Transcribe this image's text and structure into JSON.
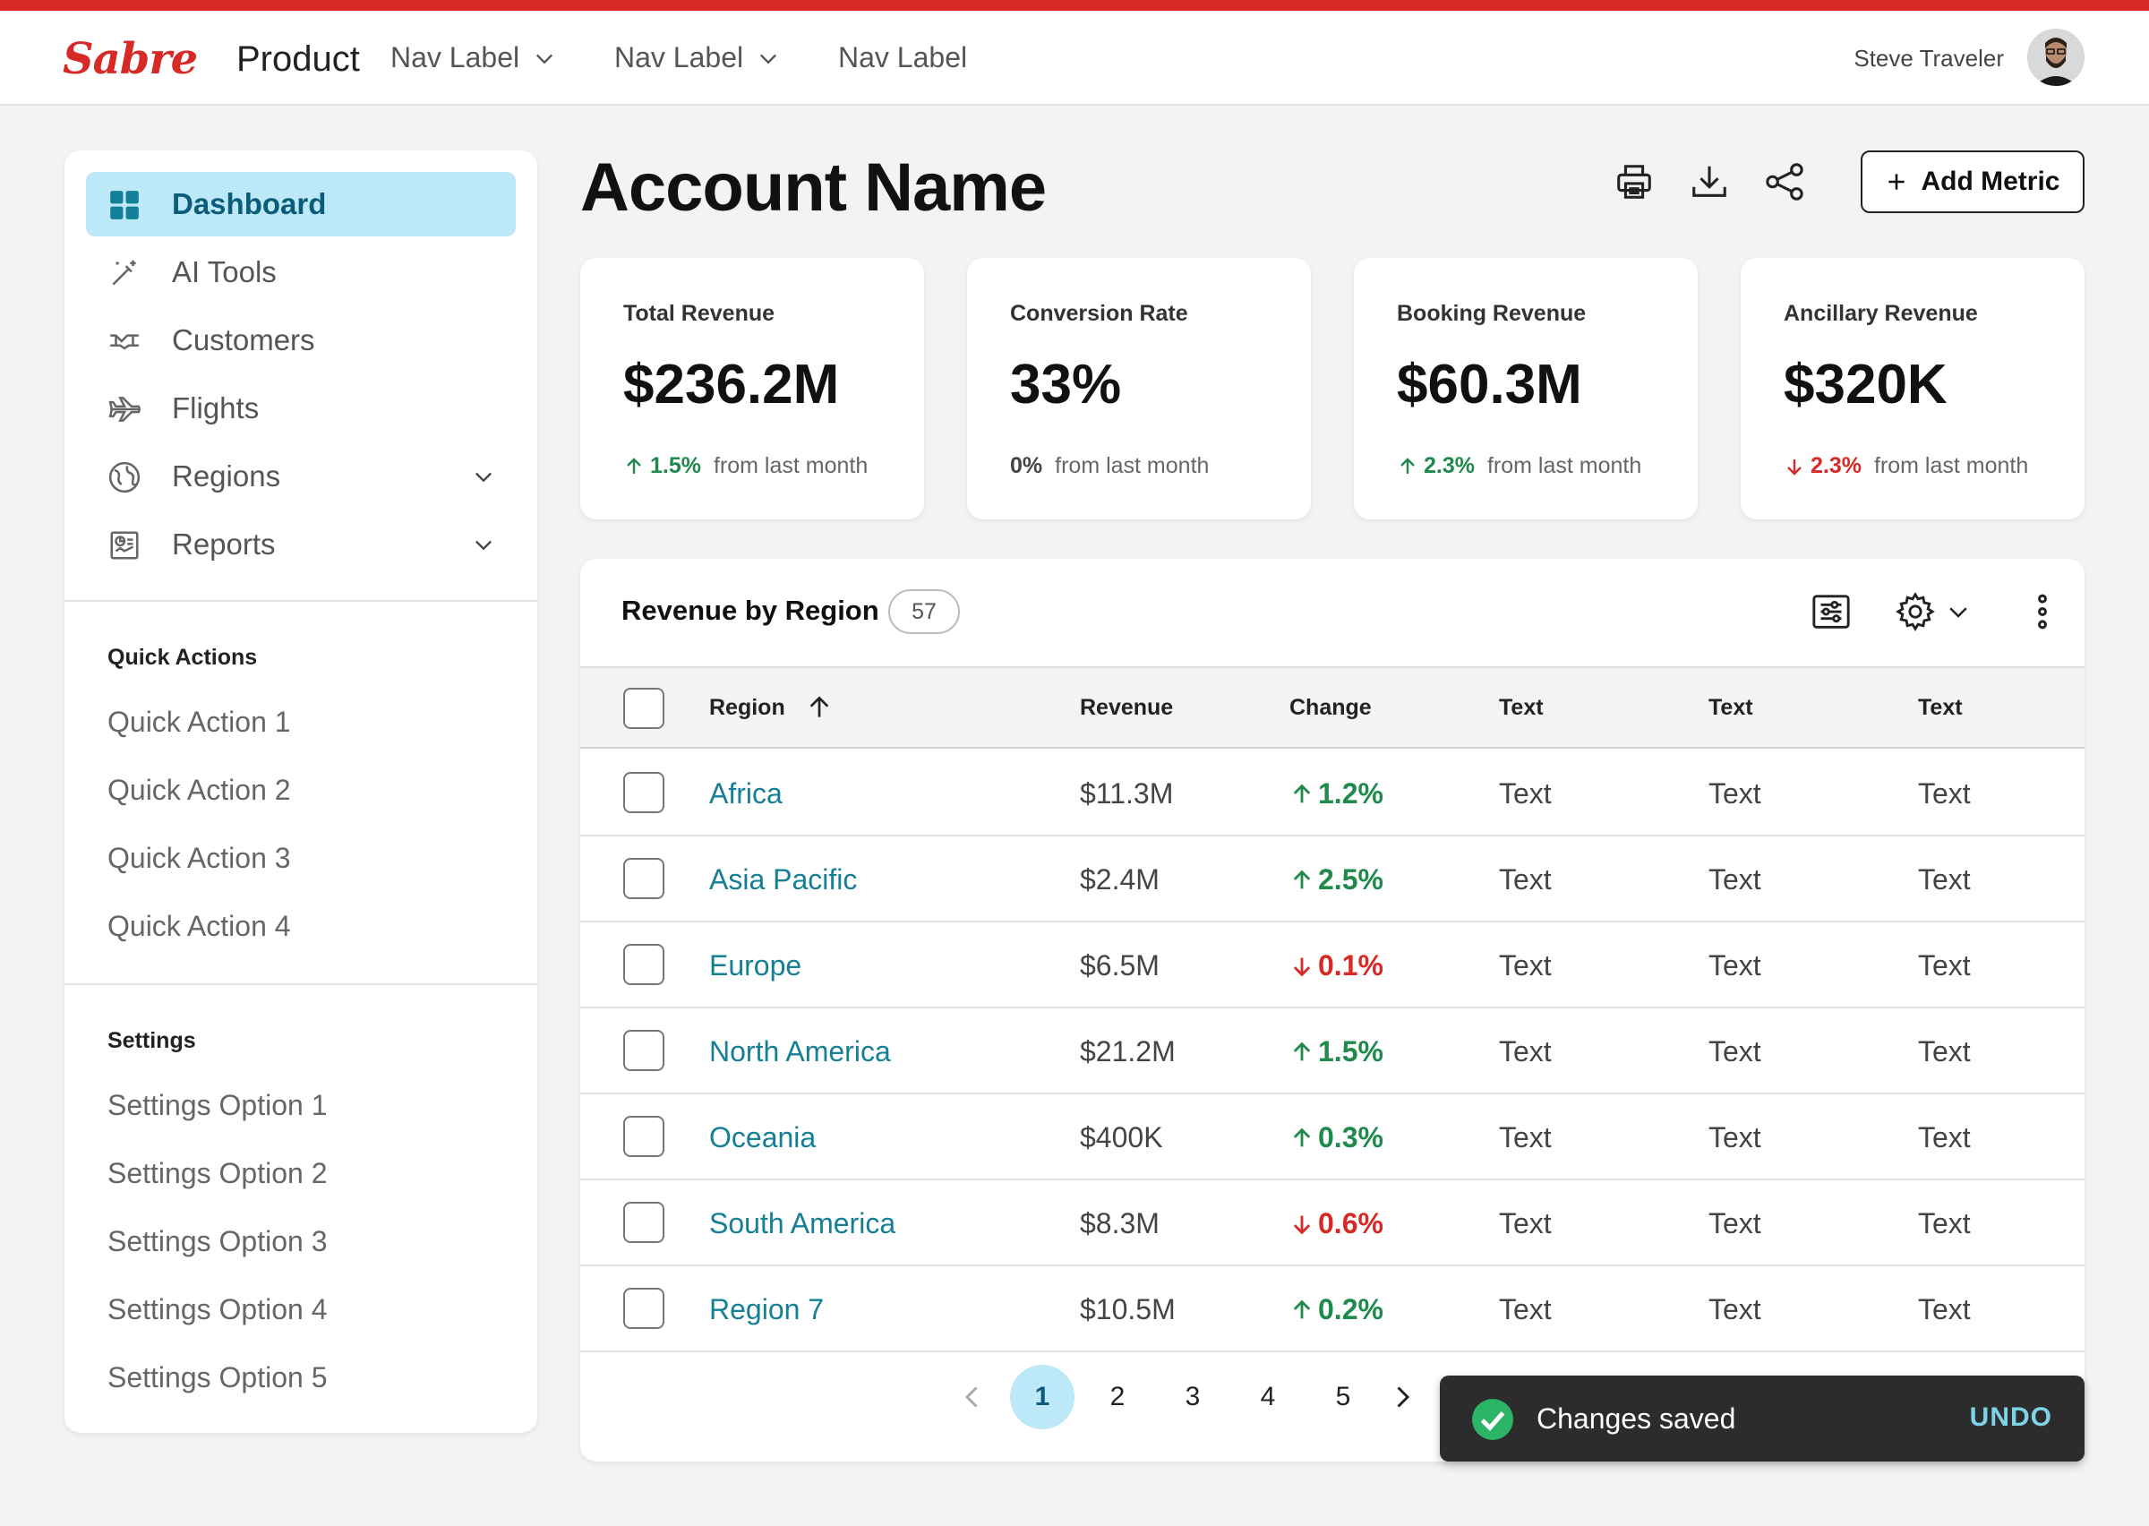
{
  "brand": {
    "logo": "Sabre",
    "product": "Product",
    "accent": "#d72a27"
  },
  "nav": [
    {
      "label": "Nav Label",
      "dropdown": true
    },
    {
      "label": "Nav Label",
      "dropdown": true
    },
    {
      "label": "Nav Label",
      "dropdown": false
    }
  ],
  "user": {
    "name": "Steve Traveler"
  },
  "sidebar": {
    "items": [
      {
        "label": "Dashboard",
        "icon": "dashboard-grid-icon",
        "active": true
      },
      {
        "label": "AI Tools",
        "icon": "magic-wand-icon"
      },
      {
        "label": "Customers",
        "icon": "handshake-icon"
      },
      {
        "label": "Flights",
        "icon": "airplane-icon"
      },
      {
        "label": "Regions",
        "icon": "globe-icon",
        "expandable": true
      },
      {
        "label": "Reports",
        "icon": "report-icon",
        "expandable": true
      }
    ],
    "quick_actions_heading": "Quick Actions",
    "quick_actions": [
      "Quick Action 1",
      "Quick Action 2",
      "Quick Action 3",
      "Quick Action 4"
    ],
    "settings_heading": "Settings",
    "settings": [
      "Settings Option 1",
      "Settings Option 2",
      "Settings Option 3",
      "Settings Option 4",
      "Settings Option 5"
    ]
  },
  "page": {
    "title": "Account Name",
    "add_metric_label": "Add Metric"
  },
  "kpis": [
    {
      "title": "Total Revenue",
      "value": "$236.2M",
      "delta": "1.5%",
      "direction": "up",
      "suffix": "from last month"
    },
    {
      "title": "Conversion Rate",
      "value": "33%",
      "delta": "0%",
      "direction": "neutral",
      "suffix": "from last month"
    },
    {
      "title": "Booking Revenue",
      "value": "$60.3M",
      "delta": "2.3%",
      "direction": "up",
      "suffix": "from last month"
    },
    {
      "title": "Ancillary Revenue",
      "value": "$320K",
      "delta": "2.3%",
      "direction": "down",
      "suffix": "from last month"
    }
  ],
  "table": {
    "title": "Revenue by Region",
    "count": "57",
    "columns": [
      "Region",
      "Revenue",
      "Change",
      "Text",
      "Text",
      "Text"
    ],
    "rows": [
      {
        "region": "Africa",
        "revenue": "$11.3M",
        "change": "1.2%",
        "direction": "up",
        "c1": "Text",
        "c2": "Text",
        "c3": "Text"
      },
      {
        "region": "Asia Pacific",
        "revenue": "$2.4M",
        "change": "2.5%",
        "direction": "up",
        "c1": "Text",
        "c2": "Text",
        "c3": "Text"
      },
      {
        "region": "Europe",
        "revenue": "$6.5M",
        "change": "0.1%",
        "direction": "down",
        "c1": "Text",
        "c2": "Text",
        "c3": "Text"
      },
      {
        "region": "North America",
        "revenue": "$21.2M",
        "change": "1.5%",
        "direction": "up",
        "c1": "Text",
        "c2": "Text",
        "c3": "Text"
      },
      {
        "region": "Oceania",
        "revenue": "$400K",
        "change": "0.3%",
        "direction": "up",
        "c1": "Text",
        "c2": "Text",
        "c3": "Text"
      },
      {
        "region": "South America",
        "revenue": "$8.3M",
        "change": "0.6%",
        "direction": "down",
        "c1": "Text",
        "c2": "Text",
        "c3": "Text"
      },
      {
        "region": "Region 7",
        "revenue": "$10.5M",
        "change": "0.2%",
        "direction": "up",
        "c1": "Text",
        "c2": "Text",
        "c3": "Text"
      }
    ],
    "pagination": {
      "pages": [
        "1",
        "2",
        "3",
        "4",
        "5"
      ],
      "current": "1"
    }
  },
  "toast": {
    "message": "Changes saved",
    "action": "UNDO"
  },
  "colors": {
    "up": "#1f8a4c",
    "down": "#d72a27",
    "link": "#157f95",
    "active_bg": "#bde8f7"
  }
}
